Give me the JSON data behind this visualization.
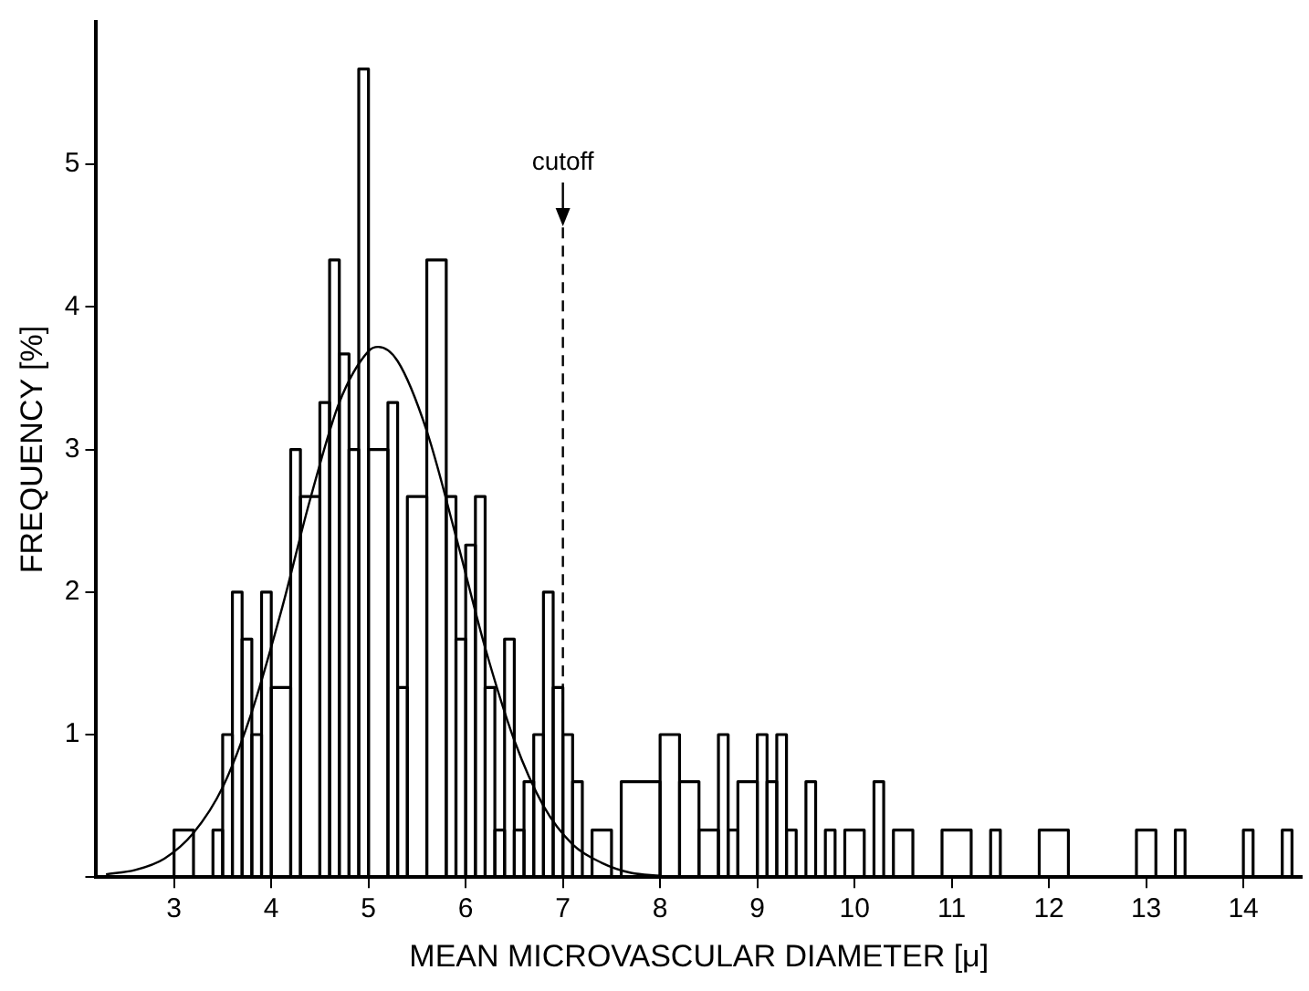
{
  "chart_data": {
    "type": "histogram",
    "xlabel": "MEAN MICROVASCULAR DIAMETER [μ]",
    "ylabel": "FREQUENCY [%]",
    "bins": [
      3.0,
      3.2,
      3.4,
      3.5,
      3.6,
      3.7,
      3.8,
      3.9,
      4.0,
      4.2,
      4.3,
      4.5,
      4.6,
      4.7,
      4.8,
      4.9,
      5.0,
      5.2,
      5.3,
      5.4,
      5.6,
      5.8,
      5.9,
      6.0,
      6.1,
      6.2,
      6.3,
      6.4,
      6.5,
      6.6,
      6.7,
      6.8,
      6.9,
      7.0,
      7.1,
      7.2,
      7.3,
      7.5,
      7.6,
      8.0,
      8.2,
      8.4,
      8.6,
      8.7,
      8.8,
      9.0,
      9.1,
      9.2,
      9.3,
      9.4,
      9.5,
      9.6,
      9.7,
      9.8,
      9.9,
      10.1,
      10.2,
      10.3,
      10.4,
      10.6,
      10.9,
      11.2,
      11.4,
      11.5,
      11.9,
      12.2,
      12.9,
      13.1,
      13.3,
      13.4,
      14.0,
      14.1,
      14.4,
      14.5
    ],
    "values": [
      0.33,
      0,
      0.33,
      1,
      2,
      1.67,
      1,
      2,
      1.33,
      3,
      2.67,
      3.33,
      4.33,
      3.67,
      3,
      5.67,
      3,
      3.33,
      1.33,
      2.67,
      4.33,
      2.67,
      1.67,
      2.33,
      2.67,
      1.33,
      0.33,
      1.67,
      0.33,
      0.67,
      1,
      2,
      1.33,
      1,
      0.67,
      0,
      0.33,
      0,
      0.67,
      1,
      0.67,
      0.33,
      1,
      0.33,
      0.67,
      1,
      0.67,
      1,
      0.33,
      0,
      0.67,
      0,
      0.33,
      0,
      0.33,
      0,
      0.67,
      0,
      0.33,
      0,
      0.33,
      0,
      0.33,
      0,
      0.33,
      0,
      0.33,
      0,
      0.33,
      0,
      0.33,
      0,
      0.33
    ],
    "color": "#000000",
    "series": [
      {
        "type": "line",
        "color": "#000000",
        "x": [
          2.3,
          2.6,
          2.9,
          3.2,
          3.5,
          3.8,
          4.1,
          4.4,
          4.7,
          5.0,
          5.1,
          5.3,
          5.6,
          5.9,
          6.2,
          6.5,
          6.8,
          7.1,
          7.4,
          7.7,
          8.0
        ],
        "values": [
          0.02,
          0.05,
          0.13,
          0.31,
          0.63,
          1.16,
          1.86,
          2.65,
          3.33,
          3.69,
          3.72,
          3.62,
          3.13,
          2.39,
          1.61,
          0.96,
          0.5,
          0.23,
          0.1,
          0.03,
          0.01
        ]
      }
    ],
    "xlim": [
      2.2,
      14.6
    ],
    "xticks": [
      3,
      4,
      5,
      6,
      7,
      8,
      9,
      10,
      11,
      12,
      13,
      14
    ],
    "ylim": [
      0,
      6
    ],
    "yticks": [
      {
        "value": 0,
        "label": null
      },
      1,
      2,
      3,
      4,
      5
    ],
    "ref_lines": [
      {
        "axis": "x",
        "value": 7,
        "label": "cutoff",
        "line_style": "dashed"
      }
    ],
    "grid": false,
    "legend": false,
    "marker": "none"
  }
}
